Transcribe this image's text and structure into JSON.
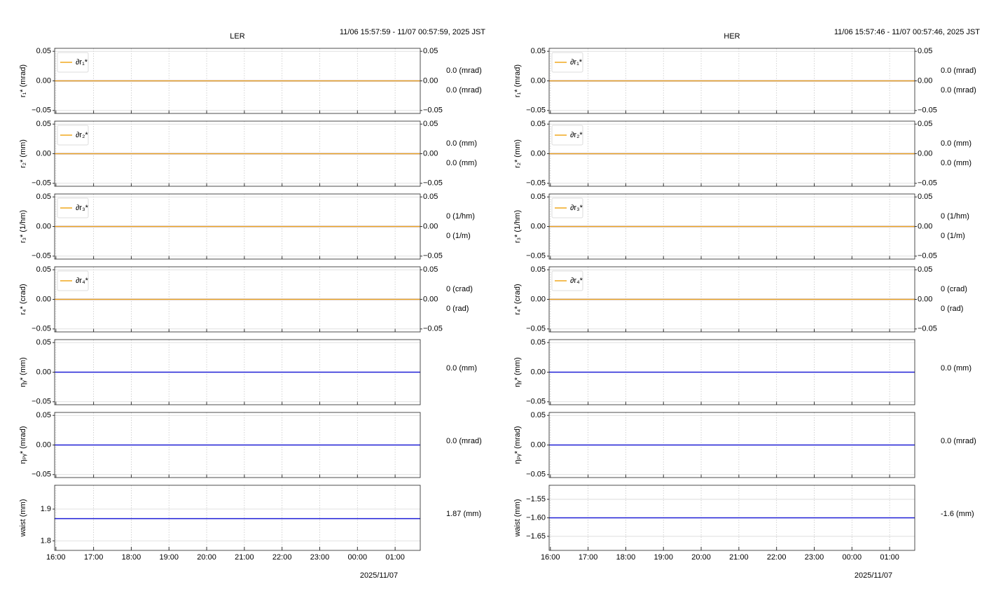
{
  "chart_data": [
    {
      "title": "LER",
      "subtitle": "11/06 15:57:59 - 11/07 00:57:59, 2025 JST",
      "xlabel": "2025/11/07",
      "grid": true,
      "xlim": [
        "15:58",
        "01:40"
      ],
      "xticks": [
        "16:00",
        "17:00",
        "18:00",
        "19:00",
        "20:00",
        "21:00",
        "22:00",
        "23:00",
        "00:00",
        "01:00"
      ],
      "panels": [
        {
          "type": "line",
          "ylabel": "r₁* (mrad)",
          "ylim": [
            -0.055,
            0.055
          ],
          "yticks": [
            {
              "value": -0.05,
              "label": "−0.05"
            },
            {
              "value": 0,
              "label": "0.00"
            },
            0.05
          ],
          "y2lim": [
            -0.055,
            0.055
          ],
          "y2ticks": [
            {
              "value": -0.05,
              "label": "−0.05"
            },
            {
              "value": 0,
              "label": "0.00"
            },
            0.05
          ],
          "legend": "upper left",
          "series": [
            {
              "color": "#1f1fd6",
              "x": [
                "15:58",
                "01:40"
              ],
              "values": [
                0,
                0
              ],
              "value_labels": [
                null,
                "0.0 (mrad)"
              ]
            },
            {
              "name": "∂r₁*",
              "color": "#f0a81e",
              "axis": "y2",
              "x": [
                "15:58",
                "01:40"
              ],
              "values": [
                0,
                0
              ],
              "value_labels": [
                null,
                "0.0 (mrad)"
              ]
            }
          ]
        },
        {
          "type": "line",
          "ylabel": "r₂* (mm)",
          "ylim": [
            -0.055,
            0.055
          ],
          "yticks": [
            {
              "value": -0.05,
              "label": "−0.05"
            },
            {
              "value": 0,
              "label": "0.00"
            },
            0.05
          ],
          "y2lim": [
            -0.055,
            0.055
          ],
          "y2ticks": [
            {
              "value": -0.05,
              "label": "−0.05"
            },
            {
              "value": 0,
              "label": "0.00"
            },
            0.05
          ],
          "legend": "upper left",
          "series": [
            {
              "color": "#1f1fd6",
              "x": [
                "15:58",
                "01:40"
              ],
              "values": [
                0,
                0
              ],
              "value_labels": [
                null,
                "0.0 (mm)"
              ]
            },
            {
              "name": "∂r₂*",
              "color": "#f0a81e",
              "axis": "y2",
              "x": [
                "15:58",
                "01:40"
              ],
              "values": [
                0,
                0
              ],
              "value_labels": [
                null,
                "0.0 (mm)"
              ]
            }
          ]
        },
        {
          "type": "line",
          "ylabel": "r₃* (1/hm)",
          "ylim": [
            -0.055,
            0.055
          ],
          "yticks": [
            {
              "value": -0.05,
              "label": "−0.05"
            },
            {
              "value": 0,
              "label": "0.00"
            },
            0.05
          ],
          "y2lim": [
            -0.055,
            0.055
          ],
          "y2ticks": [
            {
              "value": -0.05,
              "label": "−0.05"
            },
            {
              "value": 0,
              "label": "0.00"
            },
            0.05
          ],
          "legend": "upper left",
          "series": [
            {
              "color": "#1f1fd6",
              "x": [
                "15:58",
                "01:40"
              ],
              "values": [
                0,
                0
              ],
              "value_labels": [
                null,
                "0 (1/hm)"
              ]
            },
            {
              "name": "∂r₃*",
              "color": "#f0a81e",
              "axis": "y2",
              "x": [
                "15:58",
                "01:40"
              ],
              "values": [
                0,
                0
              ],
              "value_labels": [
                null,
                "0 (1/m)"
              ]
            }
          ]
        },
        {
          "type": "line",
          "ylabel": "r₄* (crad)",
          "ylim": [
            -0.055,
            0.055
          ],
          "yticks": [
            {
              "value": -0.05,
              "label": "−0.05"
            },
            {
              "value": 0,
              "label": "0.00"
            },
            0.05
          ],
          "y2lim": [
            -0.055,
            0.055
          ],
          "y2ticks": [
            {
              "value": -0.05,
              "label": "−0.05"
            },
            {
              "value": 0,
              "label": "0.00"
            },
            0.05
          ],
          "legend": "upper left",
          "series": [
            {
              "color": "#1f1fd6",
              "x": [
                "15:58",
                "01:40"
              ],
              "values": [
                0,
                0
              ],
              "value_labels": [
                null,
                "0 (crad)"
              ]
            },
            {
              "name": "∂r₄*",
              "color": "#f0a81e",
              "axis": "y2",
              "x": [
                "15:58",
                "01:40"
              ],
              "values": [
                0,
                0
              ],
              "value_labels": [
                null,
                "0 (rad)"
              ]
            }
          ]
        },
        {
          "type": "line",
          "ylabel": "ηᵧ* (mm)",
          "ylim": [
            -0.055,
            0.055
          ],
          "yticks": [
            {
              "value": -0.05,
              "label": "−0.05"
            },
            {
              "value": 0,
              "label": "0.00"
            },
            0.05
          ],
          "series": [
            {
              "color": "#1f1fd6",
              "x": [
                "15:58",
                "01:40"
              ],
              "values": [
                0,
                0
              ],
              "value_labels": [
                null,
                "0.0 (mm)"
              ]
            }
          ]
        },
        {
          "type": "line",
          "ylabel": "ηₚᵧ* (mrad)",
          "ylim": [
            -0.055,
            0.055
          ],
          "yticks": [
            {
              "value": -0.05,
              "label": "−0.05"
            },
            {
              "value": 0,
              "label": "0.00"
            },
            0.05
          ],
          "series": [
            {
              "color": "#1f1fd6",
              "x": [
                "15:58",
                "01:40"
              ],
              "values": [
                0,
                0
              ],
              "value_labels": [
                null,
                "0.0 (mrad)"
              ]
            }
          ]
        },
        {
          "type": "line",
          "ylabel": "waist (mm)",
          "ylim": [
            1.77,
            1.975
          ],
          "yticks": [
            1.8,
            1.9
          ],
          "series": [
            {
              "color": "#1f1fd6",
              "x": [
                "15:58",
                "01:40"
              ],
              "values": [
                1.87,
                1.87
              ],
              "value_labels": [
                null,
                "1.87 (mm)"
              ]
            }
          ]
        }
      ]
    },
    {
      "title": "HER",
      "subtitle": "11/06 15:57:46 - 11/07 00:57:46, 2025 JST",
      "xlabel": "2025/11/07",
      "grid": true,
      "xlim": [
        "15:58",
        "01:40"
      ],
      "xticks": [
        "16:00",
        "17:00",
        "18:00",
        "19:00",
        "20:00",
        "21:00",
        "22:00",
        "23:00",
        "00:00",
        "01:00"
      ],
      "panels": [
        {
          "type": "line",
          "ylabel": "r₁* (mrad)",
          "ylim": [
            -0.055,
            0.055
          ],
          "yticks": [
            {
              "value": -0.05,
              "label": "−0.05"
            },
            {
              "value": 0,
              "label": "0.00"
            },
            0.05
          ],
          "y2lim": [
            -0.055,
            0.055
          ],
          "y2ticks": [
            {
              "value": -0.05,
              "label": "−0.05"
            },
            {
              "value": 0,
              "label": "0.00"
            },
            0.05
          ],
          "legend": "upper left",
          "series": [
            {
              "color": "#1f1fd6",
              "x": [
                "15:58",
                "01:40"
              ],
              "values": [
                0,
                0
              ],
              "value_labels": [
                null,
                "0.0 (mrad)"
              ]
            },
            {
              "name": "∂r₁*",
              "color": "#f0a81e",
              "axis": "y2",
              "x": [
                "15:58",
                "01:40"
              ],
              "values": [
                0,
                0
              ],
              "value_labels": [
                null,
                "0.0 (mrad)"
              ]
            }
          ]
        },
        {
          "type": "line",
          "ylabel": "r₂* (mm)",
          "ylim": [
            -0.055,
            0.055
          ],
          "yticks": [
            {
              "value": -0.05,
              "label": "−0.05"
            },
            {
              "value": 0,
              "label": "0.00"
            },
            0.05
          ],
          "y2lim": [
            -0.055,
            0.055
          ],
          "y2ticks": [
            {
              "value": -0.05,
              "label": "−0.05"
            },
            {
              "value": 0,
              "label": "0.00"
            },
            0.05
          ],
          "legend": "upper left",
          "series": [
            {
              "color": "#1f1fd6",
              "x": [
                "15:58",
                "01:40"
              ],
              "values": [
                0,
                0
              ],
              "value_labels": [
                null,
                "0.0 (mm)"
              ]
            },
            {
              "name": "∂r₂*",
              "color": "#f0a81e",
              "axis": "y2",
              "x": [
                "15:58",
                "01:40"
              ],
              "values": [
                0,
                0
              ],
              "value_labels": [
                null,
                "0.0 (mm)"
              ]
            }
          ]
        },
        {
          "type": "line",
          "ylabel": "r₃* (1/hm)",
          "ylim": [
            -0.055,
            0.055
          ],
          "yticks": [
            {
              "value": -0.05,
              "label": "−0.05"
            },
            {
              "value": 0,
              "label": "0.00"
            },
            0.05
          ],
          "y2lim": [
            -0.055,
            0.055
          ],
          "y2ticks": [
            {
              "value": -0.05,
              "label": "−0.05"
            },
            {
              "value": 0,
              "label": "0.00"
            },
            0.05
          ],
          "legend": "upper left",
          "series": [
            {
              "color": "#1f1fd6",
              "x": [
                "15:58",
                "01:40"
              ],
              "values": [
                0,
                0
              ],
              "value_labels": [
                null,
                "0 (1/hm)"
              ]
            },
            {
              "name": "∂r₃*",
              "color": "#f0a81e",
              "axis": "y2",
              "x": [
                "15:58",
                "01:40"
              ],
              "values": [
                0,
                0
              ],
              "value_labels": [
                null,
                "0 (1/m)"
              ]
            }
          ]
        },
        {
          "type": "line",
          "ylabel": "r₄* (crad)",
          "ylim": [
            -0.055,
            0.055
          ],
          "yticks": [
            {
              "value": -0.05,
              "label": "−0.05"
            },
            {
              "value": 0,
              "label": "0.00"
            },
            0.05
          ],
          "y2lim": [
            -0.055,
            0.055
          ],
          "y2ticks": [
            {
              "value": -0.05,
              "label": "−0.05"
            },
            {
              "value": 0,
              "label": "0.00"
            },
            0.05
          ],
          "legend": "upper left",
          "series": [
            {
              "color": "#1f1fd6",
              "x": [
                "15:58",
                "01:40"
              ],
              "values": [
                0,
                0
              ],
              "value_labels": [
                null,
                "0 (crad)"
              ]
            },
            {
              "name": "∂r₄*",
              "color": "#f0a81e",
              "axis": "y2",
              "x": [
                "15:58",
                "01:40"
              ],
              "values": [
                0,
                0
              ],
              "value_labels": [
                null,
                "0 (rad)"
              ]
            }
          ]
        },
        {
          "type": "line",
          "ylabel": "ηᵧ* (mm)",
          "ylim": [
            -0.055,
            0.055
          ],
          "yticks": [
            {
              "value": -0.05,
              "label": "−0.05"
            },
            {
              "value": 0,
              "label": "0.00"
            },
            0.05
          ],
          "series": [
            {
              "color": "#1f1fd6",
              "x": [
                "15:58",
                "01:40"
              ],
              "values": [
                0,
                0
              ],
              "value_labels": [
                null,
                "0.0 (mm)"
              ]
            }
          ]
        },
        {
          "type": "line",
          "ylabel": "ηₚᵧ* (mrad)",
          "ylim": [
            -0.055,
            0.055
          ],
          "yticks": [
            {
              "value": -0.05,
              "label": "−0.05"
            },
            {
              "value": 0,
              "label": "0.00"
            },
            0.05
          ],
          "series": [
            {
              "color": "#1f1fd6",
              "x": [
                "15:58",
                "01:40"
              ],
              "values": [
                0,
                0
              ],
              "value_labels": [
                null,
                "0.0 (mrad)"
              ]
            }
          ]
        },
        {
          "type": "line",
          "ylabel": "waist (mm)",
          "ylim": [
            -1.688,
            -1.512
          ],
          "yticks": [
            {
              "value": -1.65,
              "label": "−1.65"
            },
            {
              "value": -1.6,
              "label": "−1.60"
            },
            {
              "value": -1.55,
              "label": "−1.55"
            }
          ],
          "series": [
            {
              "color": "#1f1fd6",
              "x": [
                "15:58",
                "01:40"
              ],
              "values": [
                -1.6,
                -1.6
              ],
              "value_labels": [
                null,
                "-1.6 (mm)"
              ]
            }
          ]
        }
      ]
    }
  ]
}
